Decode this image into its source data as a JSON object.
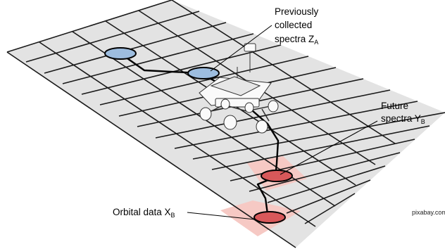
{
  "labels": {
    "previous_line1": "Previously",
    "previous_line2": "collected",
    "previous_line3_main": "spectra Z",
    "previous_sub": "A",
    "future_line1": "Future",
    "future_line2_main": "spectra Y",
    "future_sub": "B",
    "orbital_main": "Orbital data X",
    "orbital_sub": "B",
    "credit": "pixabay.com"
  },
  "colors": {
    "grid_fill": "#e3e3e3",
    "grid_line": "#1a1a1a",
    "previous_ellipse": "#9dbddf",
    "future_ellipse": "#d8585a",
    "highlight_cell": "#f6c9c4",
    "path": "#000000"
  },
  "icons": {
    "rover": "mars-rover-icon"
  }
}
